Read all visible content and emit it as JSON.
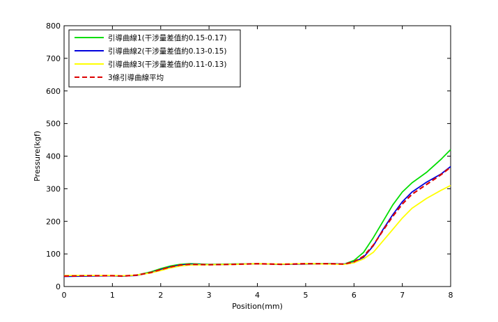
{
  "chart_data": {
    "type": "line",
    "xlabel": "Position(mm)",
    "ylabel": "Pressure(kgf)",
    "xlim": [
      0,
      8
    ],
    "ylim": [
      0,
      800
    ],
    "xticks": [
      "0",
      "1",
      "2",
      "3",
      "4",
      "5",
      "6",
      "7",
      "8"
    ],
    "yticks": [
      "0",
      "100",
      "200",
      "300",
      "400",
      "500",
      "600",
      "700",
      "800"
    ],
    "grid": false,
    "legend_position": "top-left",
    "series": [
      {
        "name": "引導曲線1(干涉量差值約0.15-0.17)",
        "color": "#00dd00",
        "dash": "solid",
        "x": [
          0,
          0.5,
          1,
          1.2,
          1.5,
          1.8,
          2,
          2.2,
          2.4,
          2.6,
          3,
          3.5,
          4,
          4.5,
          5,
          5.5,
          5.8,
          6,
          6.2,
          6.4,
          6.6,
          6.8,
          7,
          7.2,
          7.5,
          7.8,
          8
        ],
        "y": [
          32,
          33,
          33,
          32,
          35,
          45,
          55,
          63,
          68,
          70,
          68,
          69,
          70,
          68,
          70,
          70,
          69,
          80,
          105,
          150,
          200,
          250,
          290,
          318,
          350,
          390,
          420
        ]
      },
      {
        "name": "引導曲線2(干涉量差值約0.13-0.15)",
        "color": "#0000dd",
        "dash": "solid",
        "x": [
          0,
          0.5,
          1,
          1.2,
          1.5,
          1.8,
          2,
          2.2,
          2.4,
          2.6,
          3,
          3.5,
          4,
          4.5,
          5,
          5.5,
          5.8,
          6,
          6.2,
          6.4,
          6.6,
          6.8,
          7,
          7.2,
          7.5,
          7.8,
          8
        ],
        "y": [
          31,
          32,
          33,
          32,
          34,
          43,
          52,
          60,
          66,
          68,
          67,
          68,
          70,
          68,
          69,
          70,
          69,
          75,
          90,
          125,
          175,
          220,
          260,
          290,
          320,
          345,
          368
        ]
      },
      {
        "name": "引導曲線3(干涉量差值約0.11-0.13)",
        "color": "#ffff00",
        "dash": "solid",
        "x": [
          0,
          0.5,
          1,
          1.2,
          1.5,
          1.8,
          2,
          2.2,
          2.4,
          2.6,
          3,
          3.5,
          4,
          4.5,
          5,
          5.5,
          5.8,
          6,
          6.2,
          6.4,
          6.6,
          6.8,
          7,
          7.2,
          7.5,
          7.8,
          8
        ],
        "y": [
          34,
          34,
          34,
          33,
          35,
          42,
          49,
          57,
          63,
          66,
          67,
          68,
          70,
          69,
          70,
          69,
          68,
          73,
          85,
          105,
          140,
          175,
          210,
          240,
          270,
          295,
          310
        ]
      },
      {
        "name": "3條引導曲線平均",
        "color": "#dd0000",
        "dash": "dashed",
        "x": [
          0,
          0.5,
          1,
          1.2,
          1.5,
          1.8,
          2,
          2.2,
          2.4,
          2.6,
          3,
          3.5,
          4,
          4.5,
          5,
          5.5,
          5.8,
          6,
          6.2,
          6.4,
          6.6,
          6.8,
          7,
          7.2,
          7.5,
          7.8,
          8
        ],
        "y": [
          32,
          33,
          33,
          32,
          35,
          43,
          52,
          60,
          66,
          68,
          67,
          68,
          70,
          68,
          70,
          70,
          69,
          76,
          93,
          127,
          172,
          215,
          253,
          283,
          313,
          343,
          366
        ]
      }
    ]
  }
}
